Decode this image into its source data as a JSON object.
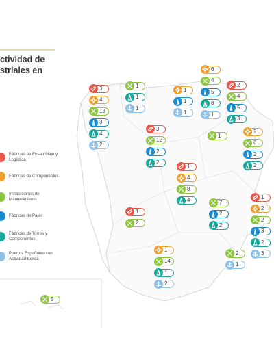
{
  "title": {
    "lines": [
      "ctividad de",
      "striales en"
    ]
  },
  "legend": [
    {
      "label": "Fábricas de Ensamblaje y Logística",
      "color": "#e8574a"
    },
    {
      "label": "Fábricas de Componentes",
      "color": "#f0a030"
    },
    {
      "label": "Instalaciones de Mantenimiento",
      "color": "#8dc63f"
    },
    {
      "label": "Fábricas de Palas",
      "color": "#1a8ccf"
    },
    {
      "label": "Fábricas de Torres y Componentes",
      "color": "#17a89a"
    },
    {
      "label": "Puertos Españoles con Actividad Eólica",
      "color": "#8fc0e6"
    }
  ],
  "regions": [
    {
      "badges": [
        {
          "color": "#e8574a",
          "value": 3
        },
        {
          "color": "#f0a030",
          "value": 4
        },
        {
          "color": "#8dc63f",
          "value": 13
        },
        {
          "color": "#1a8ccf",
          "value": 3
        },
        {
          "color": "#17a89a",
          "value": 4
        },
        {
          "color": "#8fc0e6",
          "value": 2
        }
      ]
    },
    {
      "badges": [
        {
          "color": "#8dc63f",
          "value": 1
        },
        {
          "color": "#17a89a",
          "value": 1
        },
        {
          "color": "#8fc0e6",
          "value": 1
        }
      ]
    },
    {
      "badges": [
        {
          "color": "#f0a030",
          "value": 1
        },
        {
          "color": "#1a8ccf",
          "value": 1
        },
        {
          "color": "#8fc0e6",
          "value": 1
        }
      ]
    },
    {
      "badges": [
        {
          "color": "#f0a030",
          "value": 6
        },
        {
          "color": "#8dc63f",
          "value": 4
        },
        {
          "color": "#1a8ccf",
          "value": 5
        },
        {
          "color": "#17a89a",
          "value": 8
        },
        {
          "color": "#8fc0e6",
          "value": 1
        }
      ]
    },
    {
      "badges": [
        {
          "color": "#e8574a",
          "value": 2
        },
        {
          "color": "#8dc63f",
          "value": 4
        },
        {
          "color": "#1a8ccf",
          "value": 5
        },
        {
          "color": "#17a89a",
          "value": 3
        }
      ]
    },
    {
      "badges": [
        {
          "color": "#8dc63f",
          "value": 1
        }
      ]
    },
    {
      "badges": [
        {
          "color": "#e8574a",
          "value": 3
        },
        {
          "color": "#8dc63f",
          "value": 12
        },
        {
          "color": "#1a8ccf",
          "value": 2
        },
        {
          "color": "#17a89a",
          "value": 2
        }
      ]
    },
    {
      "badges": [
        {
          "color": "#f0a030",
          "value": 2
        },
        {
          "color": "#8dc63f",
          "value": 6
        },
        {
          "color": "#1a8ccf",
          "value": 2
        },
        {
          "color": "#17a89a",
          "value": 2
        }
      ]
    },
    {
      "badges": [
        {
          "color": "#e8574a",
          "value": 1
        },
        {
          "color": "#f0a030",
          "value": 4
        },
        {
          "color": "#8dc63f",
          "value": 8
        },
        {
          "color": "#17a89a",
          "value": 4
        }
      ]
    },
    {
      "badges": [
        {
          "color": "#e8574a",
          "value": 1
        },
        {
          "color": "#f0a030",
          "value": 2
        },
        {
          "color": "#8dc63f",
          "value": 2
        },
        {
          "color": "#1a8ccf",
          "value": 3
        },
        {
          "color": "#17a89a",
          "value": 2
        },
        {
          "color": "#8fc0e6",
          "value": 3
        }
      ]
    },
    {
      "badges": [
        {
          "color": "#8dc63f",
          "value": 7
        },
        {
          "color": "#1a8ccf",
          "value": 2
        },
        {
          "color": "#17a89a",
          "value": 2
        }
      ]
    },
    {
      "badges": [
        {
          "color": "#e8574a",
          "value": 1
        },
        {
          "color": "#8dc63f",
          "value": 2
        }
      ]
    },
    {
      "badges": [
        {
          "color": "#8dc63f",
          "value": 2
        },
        {
          "color": "#8fc0e6",
          "value": 1
        }
      ]
    },
    {
      "badges": [
        {
          "color": "#f0a030",
          "value": 1
        },
        {
          "color": "#8dc63f",
          "value": 14
        },
        {
          "color": "#17a89a",
          "value": 1
        },
        {
          "color": "#8fc0e6",
          "value": 2
        }
      ]
    },
    {
      "badges": [
        {
          "color": "#8dc63f",
          "value": 5
        }
      ]
    }
  ]
}
